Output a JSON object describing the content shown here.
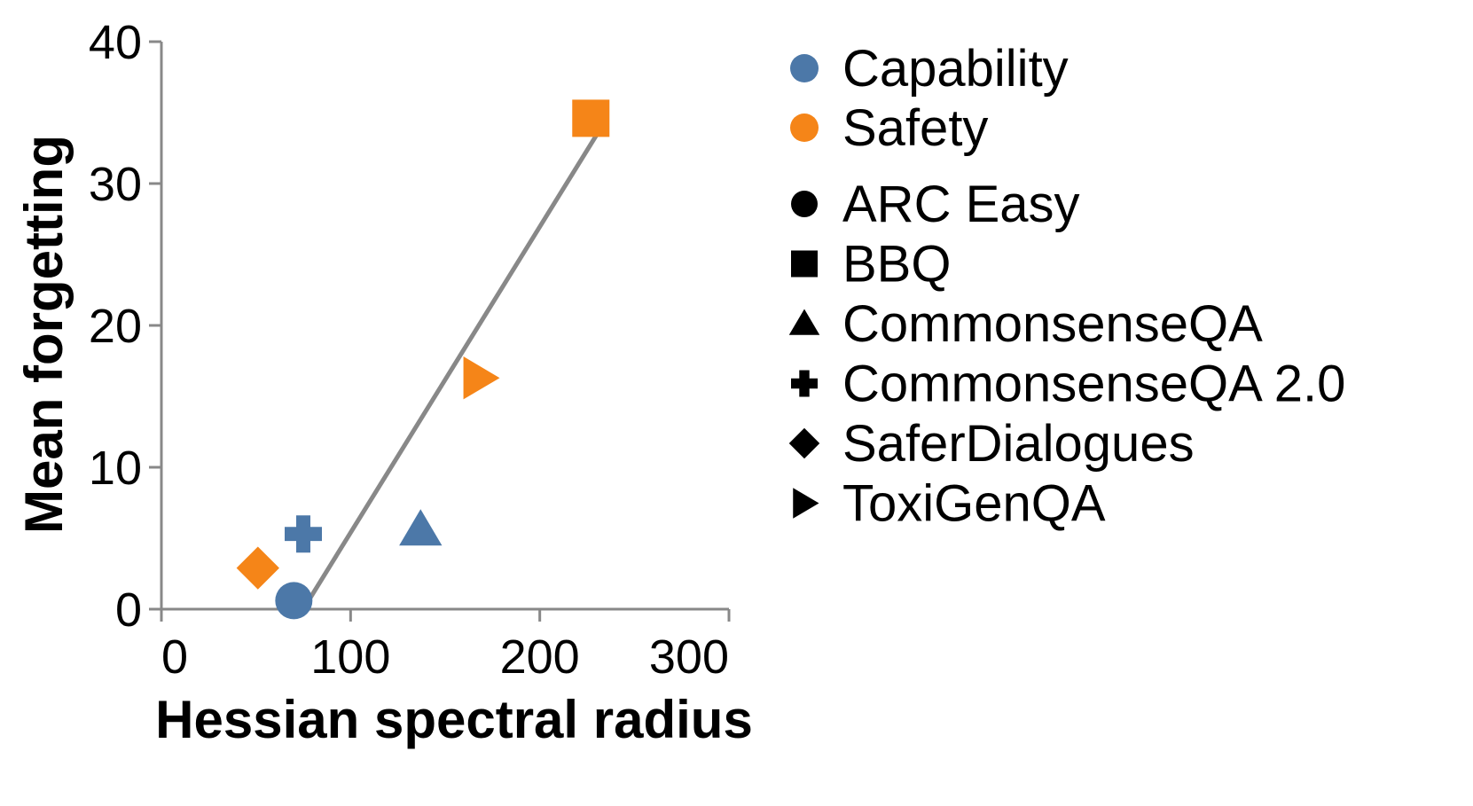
{
  "chart_data": {
    "type": "scatter",
    "xlabel": "Hessian spectral radius",
    "ylabel": "Mean forgetting",
    "xlim": [
      0,
      300
    ],
    "ylim": [
      0,
      40
    ],
    "xticks": [
      0,
      100,
      200,
      300
    ],
    "yticks": [
      0,
      10,
      20,
      30,
      40
    ],
    "grid": false,
    "legend_placement": "right",
    "colors": {
      "Capability": "#4c78a8",
      "Safety": "#f58518",
      "fit_line": "#888888"
    },
    "color_legend": [
      {
        "label": "Capability",
        "color": "#4c78a8"
      },
      {
        "label": "Safety",
        "color": "#f58518"
      }
    ],
    "shape_legend": [
      {
        "label": "ARC Easy",
        "shape": "circle"
      },
      {
        "label": "BBQ",
        "shape": "square"
      },
      {
        "label": "CommonsenseQA",
        "shape": "triangle-up"
      },
      {
        "label": "CommonsenseQA 2.0",
        "shape": "cross"
      },
      {
        "label": "SaferDialogues",
        "shape": "diamond"
      },
      {
        "label": "ToxiGenQA",
        "shape": "triangle-right"
      }
    ],
    "points": [
      {
        "dataset": "ARC Easy",
        "group": "Capability",
        "x": 70,
        "y": 0.6
      },
      {
        "dataset": "BBQ",
        "group": "Safety",
        "x": 227,
        "y": 34.6
      },
      {
        "dataset": "CommonsenseQA",
        "group": "Capability",
        "x": 137,
        "y": 5.6
      },
      {
        "dataset": "CommonsenseQA 2.0",
        "group": "Capability",
        "x": 75,
        "y": 5.3
      },
      {
        "dataset": "SaferDialogues",
        "group": "Safety",
        "x": 51,
        "y": 2.9
      },
      {
        "dataset": "ToxiGenQA",
        "group": "Safety",
        "x": 168,
        "y": 16.3
      }
    ],
    "fit_line": {
      "x": [
        75,
        235
      ],
      "y": [
        0,
        34.5
      ]
    }
  }
}
